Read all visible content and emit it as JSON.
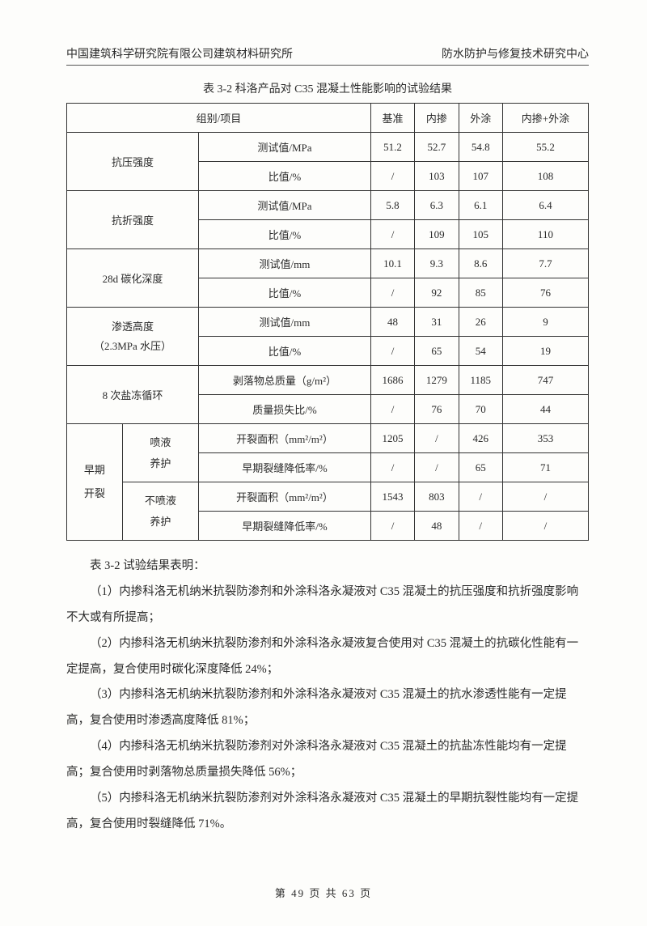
{
  "header": {
    "left": "中国建筑科学研究院有限公司建筑材料研究所",
    "right": "防水防护与修复技术研究中心"
  },
  "table": {
    "title": "表 3-2  科洛产品对 C35 混凝土性能影响的试验结果",
    "head": {
      "group": "组别/项目",
      "c1": "基准",
      "c2": "内掺",
      "c3": "外涂",
      "c4": "内掺+外涂"
    },
    "sections": {
      "compress": {
        "label": "抗压强度",
        "r1": {
          "m": "测试值/MPa",
          "v1": "51.2",
          "v2": "52.7",
          "v3": "54.8",
          "v4": "55.2"
        },
        "r2": {
          "m": "比值/%",
          "v1": "/",
          "v2": "103",
          "v3": "107",
          "v4": "108"
        }
      },
      "flex": {
        "label": "抗折强度",
        "r1": {
          "m": "测试值/MPa",
          "v1": "5.8",
          "v2": "6.3",
          "v3": "6.1",
          "v4": "6.4"
        },
        "r2": {
          "m": "比值/%",
          "v1": "/",
          "v2": "109",
          "v3": "105",
          "v4": "110"
        }
      },
      "carbon": {
        "label": "28d 碳化深度",
        "r1": {
          "m": "测试值/mm",
          "v1": "10.1",
          "v2": "9.3",
          "v3": "8.6",
          "v4": "7.7"
        },
        "r2": {
          "m": "比值/%",
          "v1": "/",
          "v2": "92",
          "v3": "85",
          "v4": "76"
        }
      },
      "perm": {
        "label1": "渗透高度",
        "label2": "（2.3MPa 水压）",
        "r1": {
          "m": "测试值/mm",
          "v1": "48",
          "v2": "31",
          "v3": "26",
          "v4": "9"
        },
        "r2": {
          "m": "比值/%",
          "v1": "/",
          "v2": "65",
          "v3": "54",
          "v4": "19"
        }
      },
      "salt": {
        "label": "8 次盐冻循环",
        "r1": {
          "m": "剥落物总质量（g/m²）",
          "v1": "1686",
          "v2": "1279",
          "v3": "1185",
          "v4": "747"
        },
        "r2": {
          "m": "质量损失比/%",
          "v1": "/",
          "v2": "76",
          "v3": "70",
          "v4": "44"
        }
      },
      "crack": {
        "label": "早期\n开裂",
        "sub1": "喷液\n养护",
        "sub2": "不喷液\n养护",
        "r1": {
          "m": "开裂面积（mm²/m²）",
          "v1": "1205",
          "v2": "/",
          "v3": "426",
          "v4": "353"
        },
        "r2": {
          "m": "早期裂缝降低率/%",
          "v1": "/",
          "v2": "/",
          "v3": "65",
          "v4": "71"
        },
        "r3": {
          "m": "开裂面积（mm²/m²）",
          "v1": "1543",
          "v2": "803",
          "v3": "/",
          "v4": "/"
        },
        "r4": {
          "m": "早期裂缝降低率/%",
          "v1": "/",
          "v2": "48",
          "v3": "/",
          "v4": "/"
        }
      }
    }
  },
  "paras": {
    "p0": "表 3-2 试验结果表明：",
    "p1": "（1）内掺科洛无机纳米抗裂防渗剂和外涂科洛永凝液对 C35 混凝土的抗压强度和抗折强度影响不大或有所提高；",
    "p2": "（2）内掺科洛无机纳米抗裂防渗剂和外涂科洛永凝液复合使用对 C35 混凝土的抗碳化性能有一定提高，复合使用时碳化深度降低 24%；",
    "p3": "（3）内掺科洛无机纳米抗裂防渗剂和外涂科洛永凝液对 C35 混凝土的抗水渗透性能有一定提高，复合使用时渗透高度降低 81%；",
    "p4": "（4）内掺科洛无机纳米抗裂防渗剂对外涂科洛永凝液对 C35 混凝土的抗盐冻性能均有一定提高；复合使用时剥落物总质量损失降低 56%；",
    "p5": "（5）内掺科洛无机纳米抗裂防渗剂对外涂科洛永凝液对 C35 混凝土的早期抗裂性能均有一定提高，复合使用时裂缝降低 71%。"
  },
  "footer": "第 49 页 共 63 页"
}
